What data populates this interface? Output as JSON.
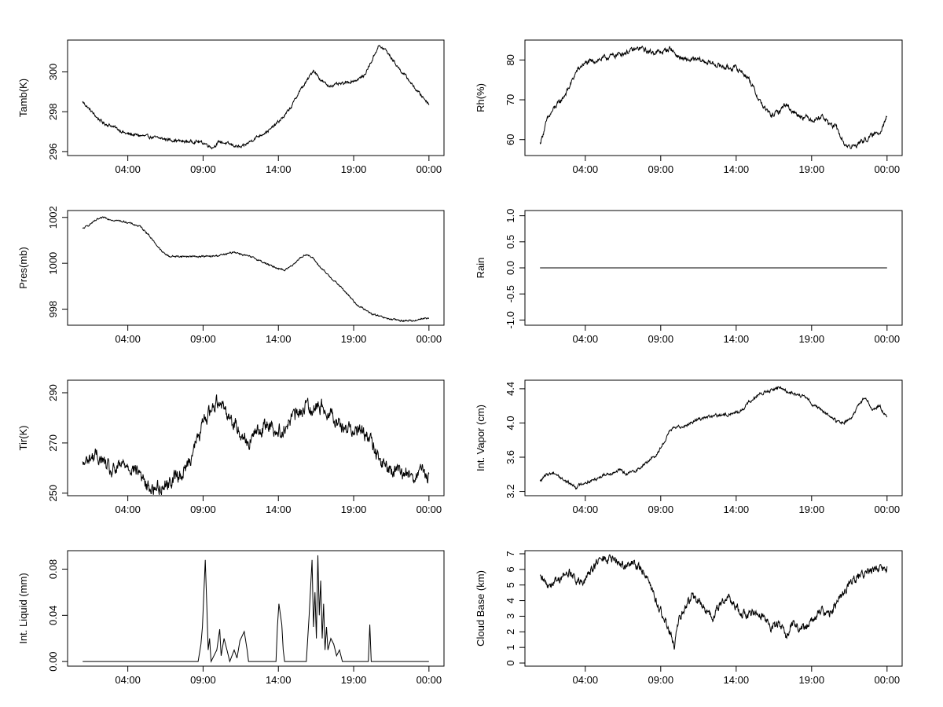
{
  "x_tick_labels": [
    "04:00",
    "09:00",
    "14:00",
    "19:00",
    "00:00"
  ],
  "x_tick_hours": [
    4,
    9,
    14,
    19,
    24
  ],
  "x_range_hours": [
    0,
    25
  ],
  "line_color": "#000000",
  "chart_data": [
    {
      "type": "line",
      "ylabel": "Tamb(K)",
      "ylim": [
        295.8,
        301.6
      ],
      "yticks": [
        296,
        298,
        300
      ],
      "ytick_labels": [
        "296",
        "298",
        "300"
      ],
      "x": [
        0,
        0.5,
        1,
        1.5,
        2,
        3,
        4,
        5,
        6,
        7,
        8,
        8.5,
        9,
        9.5,
        10,
        11,
        12,
        12.5,
        13,
        14,
        14.5,
        15,
        15.5,
        16,
        16.5,
        17,
        18,
        19,
        19.5,
        20,
        20.5,
        21,
        21.5,
        22,
        22.5,
        23,
        23.5,
        24
      ],
      "y": [
        298.5,
        298.1,
        297.7,
        297.4,
        297.3,
        296.9,
        296.8,
        296.7,
        296.6,
        296.5,
        296.5,
        296.4,
        296.2,
        296.5,
        296.4,
        296.2,
        296.7,
        296.9,
        297.1,
        297.8,
        298.3,
        299.0,
        299.5,
        300.1,
        299.6,
        299.3,
        299.4,
        299.6,
        299.8,
        300.5,
        301.3,
        301.1,
        300.6,
        300.1,
        299.7,
        299.2,
        298.8,
        298.4
      ],
      "noise": 0.12
    },
    {
      "type": "line",
      "ylabel": "Rh(%)",
      "ylim": [
        56,
        85
      ],
      "yticks": [
        60,
        70,
        80
      ],
      "ytick_labels": [
        "60",
        "70",
        "80"
      ],
      "x": [
        0,
        0.5,
        1,
        1.5,
        2,
        2.5,
        3,
        4,
        5,
        6,
        7,
        7.5,
        8,
        8.5,
        9,
        9.5,
        10,
        11,
        12,
        13,
        13.5,
        14,
        14.5,
        15,
        15.5,
        16,
        16.5,
        17,
        17.5,
        18,
        19,
        19.5,
        20,
        20.5,
        21,
        21.5,
        22,
        22.5,
        23,
        23.5,
        24
      ],
      "y": [
        59,
        65,
        68,
        70,
        73,
        77,
        79,
        80,
        81,
        82,
        83,
        82,
        82,
        82,
        83,
        81,
        80,
        80,
        79,
        78,
        78,
        77,
        75,
        71,
        68,
        66,
        67,
        69,
        67,
        66,
        65,
        66,
        64,
        63,
        59,
        58,
        59,
        60,
        61,
        62,
        66
      ],
      "noise": 1.0
    },
    {
      "type": "line",
      "ylabel": "Pres(mb)",
      "ylim": [
        997.3,
        1002.3
      ],
      "yticks": [
        998,
        1000,
        1002
      ],
      "ytick_labels": [
        "998",
        "1000",
        "1002"
      ],
      "x": [
        0,
        0.5,
        1,
        1.5,
        2,
        3,
        4,
        4.5,
        5,
        5.5,
        6,
        7,
        8,
        9,
        10,
        10.5,
        11,
        12,
        13,
        14,
        14.5,
        15,
        15.5,
        16,
        16.5,
        17,
        18,
        19,
        19.5,
        20,
        21,
        22,
        23,
        23.5,
        24
      ],
      "y": [
        1001.5,
        1001.7,
        1001.9,
        1002.0,
        1001.9,
        1001.8,
        1001.6,
        1001.3,
        1000.9,
        1000.5,
        1000.3,
        1000.3,
        1000.3,
        1000.3,
        1000.4,
        1000.5,
        1000.4,
        1000.2,
        999.9,
        999.7,
        999.9,
        1000.2,
        1000.4,
        1000.2,
        999.8,
        999.5,
        998.9,
        998.2,
        998.0,
        997.8,
        997.6,
        997.5,
        997.5,
        997.6,
        997.6
      ],
      "noise": 0.06
    },
    {
      "type": "line",
      "ylabel": "Rain",
      "ylim": [
        -1.1,
        1.1
      ],
      "yticks": [
        -1.0,
        -0.5,
        0.0,
        0.5,
        1.0
      ],
      "ytick_labels": [
        "-1.0",
        "-0.5",
        "0.0",
        "0.5",
        "1.0"
      ],
      "x": [
        0,
        24
      ],
      "y": [
        0.0,
        0.0
      ],
      "noise": 0
    },
    {
      "type": "line",
      "ylabel": "Tir(K)",
      "ylim": [
        249,
        295
      ],
      "yticks": [
        250,
        270,
        290
      ],
      "ytick_labels": [
        "250",
        "270",
        "290"
      ],
      "x": [
        0,
        0.5,
        1,
        1.5,
        2,
        2.5,
        3,
        3.5,
        4,
        4.5,
        5,
        5.5,
        6,
        6.5,
        7,
        7.5,
        8,
        8.5,
        9,
        9.5,
        10,
        10.5,
        11,
        11.5,
        12,
        12.5,
        13,
        13.5,
        14,
        14.5,
        15,
        15.5,
        16,
        16.5,
        17,
        17.5,
        18,
        18.5,
        19,
        19.5,
        20,
        20.5,
        21,
        21.5,
        22,
        22.5,
        23,
        23.5,
        24
      ],
      "y": [
        261,
        264,
        265,
        262,
        258,
        260,
        262,
        260,
        258,
        252,
        252,
        253,
        254,
        257,
        258,
        265,
        272,
        280,
        284,
        288,
        282,
        278,
        274,
        270,
        274,
        276,
        278,
        274,
        276,
        280,
        282,
        285,
        284,
        285,
        283,
        280,
        276,
        276,
        276,
        274,
        270,
        264,
        260,
        259,
        258,
        258,
        257,
        258,
        256
      ],
      "noise": 4.5
    },
    {
      "type": "line",
      "ylabel": "Int. Vapor (cm)",
      "ylim": [
        3.15,
        4.5
      ],
      "yticks": [
        3.2,
        3.6,
        4.0,
        4.4
      ],
      "ytick_labels": [
        "3.2",
        "3.6",
        "4.0",
        "4.4"
      ],
      "x": [
        0,
        0.5,
        1,
        1.5,
        2,
        2.5,
        3,
        3.5,
        4,
        4.5,
        5,
        5.5,
        6,
        6.5,
        7,
        7.5,
        8,
        8.5,
        9,
        9.5,
        10,
        11,
        12,
        13,
        13.5,
        14,
        14.5,
        15,
        15.5,
        16,
        16.5,
        17,
        17.5,
        18,
        18.5,
        19,
        19.5,
        20,
        20.5,
        21,
        21.5,
        22,
        22.5,
        23,
        23.5,
        24
      ],
      "y": [
        3.32,
        3.4,
        3.42,
        3.35,
        3.3,
        3.25,
        3.3,
        3.32,
        3.36,
        3.4,
        3.42,
        3.45,
        3.4,
        3.44,
        3.48,
        3.56,
        3.62,
        3.75,
        3.92,
        3.95,
        3.97,
        4.05,
        4.08,
        4.1,
        4.12,
        4.15,
        4.25,
        4.32,
        4.35,
        4.38,
        4.42,
        4.38,
        4.35,
        4.32,
        4.28,
        4.2,
        4.15,
        4.08,
        4.02,
        4.0,
        4.05,
        4.2,
        4.3,
        4.15,
        4.2,
        4.05
      ],
      "noise": 0.03
    },
    {
      "type": "line",
      "ylabel": "Int. Liquid (mm)",
      "ylim": [
        -0.004,
        0.096
      ],
      "yticks": [
        0.0,
        0.04,
        0.08
      ],
      "ytick_labels": [
        "0.00",
        "0.04",
        "0.08"
      ],
      "x": [
        0,
        8.0,
        8.2,
        8.3,
        8.5,
        8.6,
        8.7,
        8.8,
        8.9,
        9.3,
        9.5,
        9.6,
        9.8,
        10.0,
        10.2,
        10.5,
        10.7,
        10.9,
        11.2,
        11.4,
        11.5,
        13.4,
        13.5,
        13.6,
        13.8,
        13.9,
        14.0,
        15.5,
        15.7,
        15.9,
        16.0,
        16.1,
        16.2,
        16.3,
        16.4,
        16.5,
        16.6,
        16.7,
        16.8,
        16.9,
        17.0,
        17.2,
        17.4,
        17.6,
        17.8,
        18.0,
        19.8,
        19.9,
        20.0,
        24
      ],
      "y": [
        0,
        0,
        0.015,
        0.03,
        0.088,
        0.05,
        0.01,
        0.02,
        0,
        0.01,
        0.028,
        0.005,
        0.02,
        0.01,
        0,
        0.01,
        0.003,
        0.018,
        0.026,
        0.01,
        0,
        0,
        0.03,
        0.05,
        0.032,
        0.01,
        0,
        0,
        0.04,
        0.088,
        0.03,
        0.06,
        0.02,
        0.092,
        0.04,
        0.07,
        0.02,
        0.05,
        0.01,
        0.03,
        0.01,
        0.02,
        0.015,
        0.005,
        0.01,
        0,
        0,
        0.032,
        0,
        0
      ],
      "noise": 0
    },
    {
      "type": "line",
      "ylabel": "Cloud Base (km)",
      "ylim": [
        -0.2,
        7.2
      ],
      "yticks": [
        0,
        1,
        2,
        3,
        4,
        5,
        6,
        7
      ],
      "ytick_labels": [
        "0",
        "1",
        "2",
        "3",
        "4",
        "5",
        "6",
        "7"
      ],
      "x": [
        0,
        0.5,
        1,
        1.5,
        2,
        2.5,
        3,
        3.5,
        4,
        4.5,
        5,
        5.5,
        6,
        6.5,
        7,
        7.5,
        8,
        8.5,
        9,
        9.3,
        9.5,
        10,
        10.5,
        11,
        11.5,
        12,
        12.5,
        13,
        13.5,
        14,
        14.5,
        15,
        15.5,
        16,
        16.5,
        17,
        17.5,
        18,
        18.5,
        19,
        19.5,
        20,
        20.5,
        21,
        21.5,
        22,
        22.5,
        23,
        23.5,
        24
      ],
      "y": [
        5.4,
        5.0,
        5.2,
        5.5,
        5.8,
        5.3,
        5.0,
        6.0,
        6.5,
        6.7,
        6.6,
        6.4,
        6.2,
        6.4,
        6.0,
        5.5,
        4.0,
        3.0,
        2.0,
        0.8,
        2.5,
        3.5,
        4.2,
        4.0,
        3.2,
        3.0,
        3.8,
        4.3,
        3.6,
        3.2,
        3.0,
        3.4,
        3.0,
        2.2,
        2.5,
        1.8,
        2.6,
        2.2,
        2.4,
        3.1,
        3.4,
        3.0,
        3.8,
        4.5,
        5.2,
        5.5,
        5.8,
        5.9,
        6.0,
        6.1
      ],
      "noise": 0.45
    }
  ]
}
